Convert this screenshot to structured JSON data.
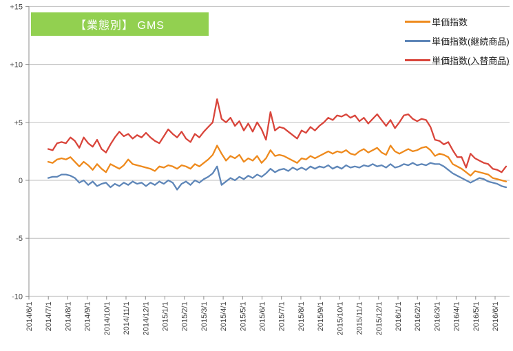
{
  "title": {
    "label": "【業態別】 GMS"
  },
  "styles": {
    "title_bg": "#92D050",
    "title_text": "#FFFFFF",
    "grid_color": "#BFBFBF",
    "axis_color": "#8C8C8C",
    "label_color": "#404040"
  },
  "chart_data": {
    "type": "line",
    "title": "【業態別】 GMS",
    "x_start": "2014/7/1",
    "x_interval": "weekly",
    "x_points": 104,
    "x_tick_labels": [
      "2014/6/1",
      "2014/7/1",
      "2014/8/1",
      "2014/9/1",
      "2014/10/1",
      "2014/11/1",
      "2014/12/1",
      "2015/1/1",
      "2015/2/1",
      "2015/3/1",
      "2015/4/1",
      "2015/5/1",
      "2015/6/1",
      "2015/7/1",
      "2015/8/1",
      "2015/9/1",
      "2015/10/1",
      "2015/11/1",
      "2015/12/1",
      "2016/1/1",
      "2016/2/1",
      "2016/3/1",
      "2016/4/1",
      "2016/5/1",
      "2016/6/1"
    ],
    "ylim": [
      -10,
      15
    ],
    "y_tick_values": [
      15,
      10,
      5,
      0,
      -5,
      -10
    ],
    "y_tick_labels": [
      "+15",
      "+10",
      "+5",
      "0",
      "-5",
      "-10"
    ],
    "grid": "horizontal",
    "legend_position": "top-right",
    "series": [
      {
        "name": "単価指数",
        "color": "#EE8A1D",
        "values": [
          1.6,
          1.5,
          1.8,
          1.9,
          1.8,
          2.0,
          1.6,
          1.2,
          1.6,
          1.3,
          0.9,
          1.4,
          1.0,
          0.7,
          1.4,
          1.2,
          1.0,
          1.3,
          1.8,
          1.4,
          1.3,
          1.2,
          1.1,
          1.0,
          0.8,
          1.2,
          1.1,
          1.3,
          1.2,
          1.0,
          1.3,
          1.2,
          1.0,
          1.4,
          1.2,
          1.5,
          1.8,
          2.2,
          3.0,
          2.3,
          1.7,
          2.1,
          1.9,
          2.2,
          1.6,
          1.9,
          1.7,
          2.1,
          1.5,
          1.9,
          2.6,
          2.1,
          2.2,
          2.1,
          1.9,
          1.7,
          1.5,
          1.9,
          1.8,
          2.1,
          1.9,
          2.1,
          2.3,
          2.5,
          2.3,
          2.5,
          2.4,
          2.6,
          2.3,
          2.2,
          2.5,
          2.7,
          2.4,
          2.6,
          2.8,
          2.4,
          2.2,
          3.0,
          2.5,
          2.3,
          2.5,
          2.7,
          2.5,
          2.6,
          2.8,
          2.9,
          2.6,
          2.1,
          2.3,
          2.2,
          2.0,
          1.4,
          1.2,
          1.0,
          0.7,
          0.4,
          0.8,
          0.7,
          0.6,
          0.5,
          0.2,
          0.1,
          0.0,
          -0.1
        ]
      },
      {
        "name": "単価指数(継続商品)",
        "color": "#5E86B8",
        "values": [
          0.2,
          0.3,
          0.3,
          0.5,
          0.5,
          0.4,
          0.2,
          -0.2,
          0.0,
          -0.4,
          -0.1,
          -0.5,
          -0.3,
          -0.2,
          -0.6,
          -0.3,
          -0.5,
          -0.2,
          -0.4,
          -0.1,
          -0.3,
          -0.2,
          -0.5,
          -0.2,
          -0.4,
          -0.1,
          -0.3,
          0.0,
          -0.2,
          -0.8,
          -0.3,
          -0.1,
          -0.4,
          0.0,
          -0.2,
          0.1,
          0.3,
          0.6,
          1.2,
          -0.4,
          -0.1,
          0.2,
          0.0,
          0.3,
          0.1,
          0.4,
          0.2,
          0.5,
          0.3,
          0.6,
          1.0,
          0.7,
          0.9,
          1.0,
          0.8,
          1.1,
          0.9,
          1.1,
          0.9,
          1.2,
          1.0,
          1.2,
          1.1,
          1.3,
          1.0,
          1.2,
          1.0,
          1.3,
          1.1,
          1.2,
          1.1,
          1.3,
          1.2,
          1.4,
          1.2,
          1.3,
          1.1,
          1.4,
          1.1,
          1.2,
          1.4,
          1.3,
          1.5,
          1.3,
          1.4,
          1.3,
          1.5,
          1.4,
          1.4,
          1.2,
          0.9,
          0.6,
          0.4,
          0.2,
          0.0,
          -0.2,
          0.0,
          0.2,
          0.1,
          -0.1,
          -0.2,
          -0.3,
          -0.5,
          -0.6
        ]
      },
      {
        "name": "単価指数(入替商品)",
        "color": "#D9453B",
        "values": [
          2.7,
          2.6,
          3.2,
          3.3,
          3.2,
          3.7,
          3.4,
          2.8,
          3.7,
          3.2,
          2.9,
          3.5,
          2.7,
          2.4,
          3.1,
          3.7,
          4.2,
          3.8,
          4.0,
          3.6,
          3.9,
          3.7,
          4.1,
          3.7,
          3.4,
          3.2,
          3.8,
          4.4,
          4.0,
          3.7,
          4.2,
          3.6,
          3.3,
          4.0,
          3.7,
          4.2,
          4.6,
          5.0,
          7.0,
          5.3,
          5.0,
          5.4,
          4.7,
          5.1,
          4.3,
          4.9,
          4.2,
          5.0,
          4.4,
          3.5,
          5.9,
          4.3,
          4.6,
          4.5,
          4.2,
          3.9,
          3.6,
          4.3,
          4.1,
          4.6,
          4.3,
          4.7,
          5.0,
          5.4,
          5.2,
          5.6,
          5.5,
          5.7,
          5.4,
          5.6,
          5.1,
          5.4,
          4.9,
          5.3,
          5.7,
          5.2,
          4.7,
          5.2,
          4.5,
          5.0,
          5.6,
          5.7,
          5.3,
          5.1,
          5.3,
          5.2,
          4.6,
          3.5,
          3.4,
          3.1,
          3.3,
          2.6,
          2.0,
          2.0,
          1.1,
          2.3,
          1.9,
          1.7,
          1.5,
          1.4,
          1.0,
          0.9,
          0.7,
          1.2
        ]
      }
    ]
  }
}
